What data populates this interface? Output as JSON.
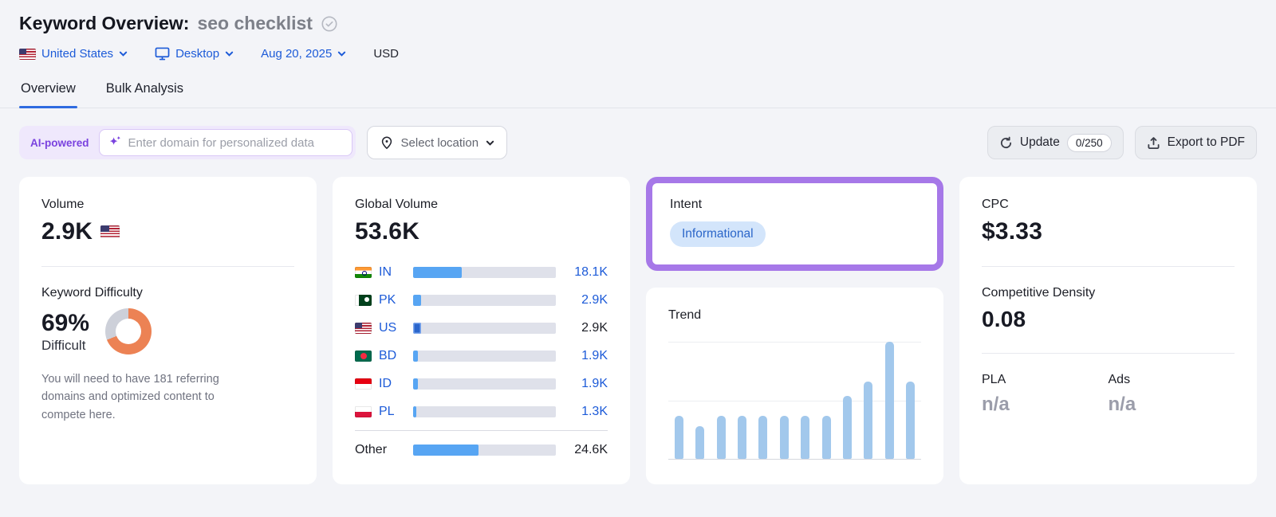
{
  "header": {
    "title": "Keyword Overview:",
    "keyword": "seo checklist",
    "filters": {
      "country": "United States",
      "device": "Desktop",
      "date": "Aug 20, 2025",
      "currency": "USD"
    }
  },
  "tabs": [
    {
      "label": "Overview",
      "active": true
    },
    {
      "label": "Bulk Analysis",
      "active": false
    }
  ],
  "toolbar": {
    "ai_badge": "AI-powered",
    "domain_placeholder": "Enter domain for personalized data",
    "select_location": "Select location",
    "update_label": "Update",
    "update_count": "0/250",
    "export_label": "Export to PDF"
  },
  "cards": {
    "volume": {
      "label": "Volume",
      "value": "2.9K",
      "flag": "us"
    },
    "difficulty": {
      "label": "Keyword Difficulty",
      "value": "69%",
      "level": "Difficult",
      "percent": 69,
      "donut_color": "#EC8254",
      "donut_track": "#CDD0D9",
      "description": "You will need to have 181 referring domains and optimized content to compete here."
    },
    "global_volume": {
      "label": "Global Volume",
      "value": "53.6K",
      "rows": [
        {
          "code": "IN",
          "flag": "in",
          "value": "18.1K",
          "share": 0.338,
          "code_link": true,
          "value_link": true
        },
        {
          "code": "PK",
          "flag": "pk",
          "value": "2.9K",
          "share": 0.055,
          "code_link": true,
          "value_link": true
        },
        {
          "code": "US",
          "flag": "us",
          "value": "2.9K",
          "share": 0.055,
          "code_link": true,
          "value_link": false,
          "highlight": true
        },
        {
          "code": "BD",
          "flag": "bd",
          "value": "1.9K",
          "share": 0.036,
          "code_link": true,
          "value_link": true
        },
        {
          "code": "ID",
          "flag": "id",
          "value": "1.9K",
          "share": 0.036,
          "code_link": true,
          "value_link": true
        },
        {
          "code": "PL",
          "flag": "pl",
          "value": "1.3K",
          "share": 0.025,
          "code_link": true,
          "value_link": true
        }
      ],
      "other": {
        "label": "Other",
        "value": "24.6K",
        "share": 0.459
      }
    },
    "intent": {
      "label": "Intent",
      "badge": "Informational",
      "badge_bg": "#D3E5FB",
      "badge_color": "#2B66C9",
      "highlight_border": "#A678E8"
    },
    "trend": {
      "label": "Trend"
    },
    "cpc": {
      "label": "CPC",
      "value": "$3.33"
    },
    "competitive_density": {
      "label": "Competitive Density",
      "value": "0.08"
    },
    "pla": {
      "label": "PLA",
      "value": "n/a"
    },
    "ads": {
      "label": "Ads",
      "value": "n/a"
    }
  },
  "chart_data": [
    {
      "type": "bar",
      "name": "global-volume-by-country",
      "title": "Global Volume",
      "orientation": "horizontal",
      "categories": [
        "IN",
        "PK",
        "US",
        "BD",
        "ID",
        "PL",
        "Other"
      ],
      "values": [
        18100,
        2900,
        2900,
        1900,
        1900,
        1300,
        24600
      ],
      "value_labels": [
        "18.1K",
        "2.9K",
        "2.9K",
        "1.9K",
        "1.9K",
        "1.3K",
        "24.6K"
      ],
      "total": 53600,
      "total_label": "53.6K",
      "bar_color": "#57A5F3",
      "highlight_bar": "US",
      "highlight_color": "#2B66CC"
    },
    {
      "type": "bar",
      "name": "monthly-trend",
      "title": "Trend",
      "values_pct_of_max": [
        37,
        28,
        37,
        37,
        37,
        37,
        37,
        37,
        54,
        66,
        100,
        66
      ],
      "bar_color": "#A2C8EC",
      "grid": "3 horizontal lines, no axis labels"
    },
    {
      "type": "donut",
      "name": "keyword-difficulty",
      "value_pct": 69,
      "label": "69% Difficult",
      "color": "#EC8254",
      "track": "#CDD0D9"
    }
  ]
}
